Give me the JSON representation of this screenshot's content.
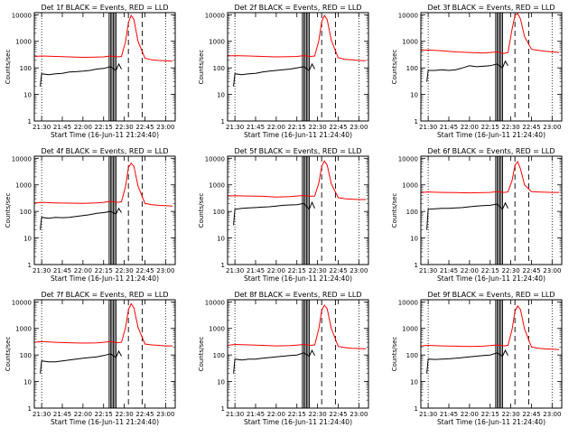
{
  "chart_data": [
    {
      "type": "line",
      "title": "Det 1f BLACK = Events, RED = LLD",
      "xlabel": "Start Time (16-Jun-11 21:24:40)",
      "ylabel": "Counts/sec",
      "x_tick_labels": [
        "21:30",
        "21:45",
        "22:00",
        "22:15",
        "22:30",
        "22:45",
        "23:00"
      ],
      "y_tick_labels": [
        "1",
        "10",
        "100",
        "1000",
        "10000"
      ],
      "yscale": "log",
      "xlim": [
        "21:24:40",
        "23:07"
      ],
      "ylim": [
        1,
        12000
      ],
      "series": [
        {
          "color": "#000000",
          "x": [
            "21:29",
            "21:30",
            "21:35",
            "21:40",
            "21:45",
            "21:50",
            "21:55",
            "22:00",
            "22:05",
            "22:10",
            "22:15",
            "22:20",
            "22:24",
            "22:26",
            "22:28"
          ],
          "y": [
            20,
            60,
            55,
            60,
            62,
            70,
            72,
            75,
            80,
            90,
            95,
            110,
            80,
            140,
            90
          ]
        },
        {
          "color": "#ff0000",
          "x": [
            "21:25",
            "21:30",
            "21:40",
            "21:50",
            "22:00",
            "22:10",
            "22:15",
            "22:20",
            "22:25",
            "22:28",
            "22:31",
            "22:33",
            "22:35",
            "22:37",
            "22:40",
            "22:45",
            "22:50",
            "22:55",
            "23:00",
            "23:05"
          ],
          "y": [
            270,
            280,
            270,
            260,
            250,
            255,
            260,
            280,
            260,
            270,
            1000,
            5000,
            9500,
            6500,
            1000,
            230,
            200,
            190,
            185,
            180
          ]
        }
      ]
    },
    {
      "type": "line",
      "title": "Det 2f BLACK = Events, RED = LLD",
      "xlabel": "Start Time (16-Jun-11 21:24:40)",
      "ylabel": "Counts/sec",
      "x_tick_labels": [
        "21:30",
        "21:45",
        "22:00",
        "22:15",
        "22:30",
        "22:45",
        "23:00"
      ],
      "y_tick_labels": [
        "1",
        "10",
        "100",
        "1000",
        "10000"
      ],
      "yscale": "log",
      "xlim": [
        "21:24:40",
        "23:07"
      ],
      "ylim": [
        1,
        12000
      ],
      "series": [
        {
          "color": "#000000",
          "x": [
            "21:29",
            "21:30",
            "21:35",
            "21:40",
            "21:45",
            "21:50",
            "21:55",
            "22:00",
            "22:05",
            "22:10",
            "22:15",
            "22:20",
            "22:24",
            "22:26",
            "22:28"
          ],
          "y": [
            20,
            60,
            55,
            60,
            62,
            70,
            75,
            80,
            85,
            90,
            100,
            110,
            80,
            140,
            90
          ]
        },
        {
          "color": "#ff0000",
          "x": [
            "21:25",
            "21:30",
            "21:40",
            "21:50",
            "22:00",
            "22:10",
            "22:15",
            "22:20",
            "22:25",
            "22:28",
            "22:31",
            "22:33",
            "22:35",
            "22:37",
            "22:40",
            "22:45",
            "22:50",
            "22:55",
            "23:00",
            "23:05"
          ],
          "y": [
            280,
            290,
            280,
            270,
            260,
            265,
            270,
            290,
            270,
            280,
            1100,
            5500,
            9500,
            6500,
            1100,
            240,
            210,
            200,
            190,
            185
          ]
        }
      ]
    },
    {
      "type": "line",
      "title": "Det 3f BLACK = Events, RED = LLD",
      "xlabel": "Start Time (16-Jun-11 21:24:40)",
      "ylabel": "Counts/sec",
      "x_tick_labels": [
        "21:30",
        "21:45",
        "22:00",
        "22:15",
        "22:30",
        "22:45",
        "23:00"
      ],
      "y_tick_labels": [
        "1",
        "10",
        "100",
        "1000",
        "10000"
      ],
      "yscale": "log",
      "xlim": [
        "21:24:40",
        "23:07"
      ],
      "ylim": [
        1,
        12000
      ],
      "series": [
        {
          "color": "#000000",
          "x": [
            "21:29",
            "21:30",
            "21:35",
            "21:40",
            "21:45",
            "21:50",
            "21:55",
            "22:00",
            "22:05",
            "22:10",
            "22:15",
            "22:20",
            "22:24",
            "22:26",
            "22:28"
          ],
          "y": [
            30,
            80,
            80,
            85,
            80,
            85,
            100,
            120,
            110,
            115,
            120,
            140,
            100,
            180,
            120
          ]
        },
        {
          "color": "#ff0000",
          "x": [
            "21:25",
            "21:30",
            "21:40",
            "21:50",
            "22:00",
            "22:10",
            "22:15",
            "22:20",
            "22:25",
            "22:28",
            "22:31",
            "22:33",
            "22:35",
            "22:37",
            "22:40",
            "22:45",
            "22:50",
            "22:55",
            "23:00",
            "23:05"
          ],
          "y": [
            450,
            470,
            440,
            400,
            380,
            360,
            380,
            400,
            350,
            380,
            3000,
            9500,
            11000,
            7000,
            1500,
            500,
            460,
            420,
            400,
            380
          ]
        }
      ]
    },
    {
      "type": "line",
      "title": "Det 4f BLACK = Events, RED = LLD",
      "xlabel": "Start Time (16-Jun-11 21:24:40)",
      "ylabel": "Counts/sec",
      "x_tick_labels": [
        "21:30",
        "21:45",
        "22:00",
        "22:15",
        "22:30",
        "22:45",
        "23:00"
      ],
      "y_tick_labels": [
        "1",
        "10",
        "100",
        "1000",
        "10000"
      ],
      "yscale": "log",
      "xlim": [
        "21:24:40",
        "23:07"
      ],
      "ylim": [
        1,
        12000
      ],
      "series": [
        {
          "color": "#000000",
          "x": [
            "21:29",
            "21:30",
            "21:35",
            "21:40",
            "21:45",
            "21:50",
            "21:55",
            "22:00",
            "22:05",
            "22:10",
            "22:15",
            "22:20",
            "22:24",
            "22:26",
            "22:28"
          ],
          "y": [
            20,
            60,
            55,
            60,
            58,
            60,
            65,
            70,
            75,
            85,
            90,
            100,
            80,
            130,
            90
          ]
        },
        {
          "color": "#ff0000",
          "x": [
            "21:25",
            "21:30",
            "21:40",
            "21:50",
            "22:00",
            "22:10",
            "22:15",
            "22:20",
            "22:25",
            "22:28",
            "22:31",
            "22:33",
            "22:35",
            "22:37",
            "22:40",
            "22:45",
            "22:50",
            "22:55",
            "23:00",
            "23:05"
          ],
          "y": [
            210,
            220,
            210,
            205,
            200,
            210,
            220,
            240,
            220,
            230,
            900,
            4500,
            6500,
            5000,
            900,
            200,
            180,
            170,
            165,
            160
          ]
        }
      ]
    },
    {
      "type": "line",
      "title": "Det 5f BLACK = Events, RED = LLD",
      "xlabel": "Start Time (16-Jun-11 21:24:40)",
      "ylabel": "Counts/sec",
      "x_tick_labels": [
        "21:30",
        "21:45",
        "22:00",
        "22:15",
        "22:30",
        "22:45",
        "23:00"
      ],
      "y_tick_labels": [
        "1",
        "10",
        "100",
        "1000",
        "10000"
      ],
      "yscale": "log",
      "xlim": [
        "21:24:40",
        "23:07"
      ],
      "ylim": [
        1,
        12000
      ],
      "series": [
        {
          "color": "#000000",
          "x": [
            "21:29",
            "21:30",
            "21:35",
            "21:40",
            "21:45",
            "21:50",
            "21:55",
            "22:00",
            "22:05",
            "22:10",
            "22:15",
            "22:20",
            "22:24",
            "22:26",
            "22:28"
          ],
          "y": [
            30,
            120,
            130,
            135,
            140,
            145,
            150,
            160,
            170,
            175,
            180,
            200,
            120,
            220,
            130
          ]
        },
        {
          "color": "#ff0000",
          "x": [
            "21:25",
            "21:30",
            "21:40",
            "21:50",
            "22:00",
            "22:10",
            "22:15",
            "22:20",
            "22:25",
            "22:28",
            "22:31",
            "22:33",
            "22:35",
            "22:37",
            "22:40",
            "22:45",
            "22:50",
            "22:55",
            "23:00",
            "23:05"
          ],
          "y": [
            380,
            390,
            380,
            370,
            350,
            360,
            380,
            400,
            370,
            380,
            1200,
            5000,
            8000,
            5500,
            1100,
            330,
            300,
            290,
            280,
            280
          ]
        }
      ]
    },
    {
      "type": "line",
      "title": "Det 6f BLACK = Events, RED = LLD",
      "xlabel": "Start Time (16-Jun-11 21:24:40)",
      "ylabel": "Counts/sec",
      "x_tick_labels": [
        "21:30",
        "21:45",
        "22:00",
        "22:15",
        "22:30",
        "22:45",
        "23:00"
      ],
      "y_tick_labels": [
        "1",
        "10",
        "100",
        "1000",
        "10000"
      ],
      "yscale": "log",
      "xlim": [
        "21:24:40",
        "23:07"
      ],
      "ylim": [
        1,
        12000
      ],
      "series": [
        {
          "color": "#000000",
          "x": [
            "21:29",
            "21:30",
            "21:35",
            "21:40",
            "21:45",
            "21:50",
            "21:55",
            "22:00",
            "22:05",
            "22:10",
            "22:15",
            "22:20",
            "22:24",
            "22:26",
            "22:28"
          ],
          "y": [
            20,
            120,
            125,
            130,
            130,
            135,
            140,
            150,
            160,
            165,
            170,
            190,
            120,
            210,
            130
          ]
        },
        {
          "color": "#ff0000",
          "x": [
            "21:25",
            "21:30",
            "21:40",
            "21:50",
            "22:00",
            "22:10",
            "22:15",
            "22:20",
            "22:25",
            "22:28",
            "22:31",
            "22:33",
            "22:35",
            "22:37",
            "22:40",
            "22:45",
            "22:50",
            "22:55",
            "23:00",
            "23:05"
          ],
          "y": [
            520,
            540,
            520,
            510,
            500,
            510,
            520,
            560,
            520,
            540,
            1500,
            5500,
            7500,
            4000,
            1000,
            560,
            540,
            530,
            520,
            520
          ]
        }
      ]
    },
    {
      "type": "line",
      "title": "Det 7f BLACK = Events, RED = LLD",
      "xlabel": "Start Time (16-Jun-11 21:24:40)",
      "ylabel": "Counts/sec",
      "x_tick_labels": [
        "21:30",
        "21:45",
        "22:00",
        "22:15",
        "22:30",
        "22:45",
        "23:00"
      ],
      "y_tick_labels": [
        "1",
        "10",
        "100",
        "1000",
        "10000"
      ],
      "yscale": "log",
      "xlim": [
        "21:24:40",
        "23:07"
      ],
      "ylim": [
        1,
        12000
      ],
      "series": [
        {
          "color": "#000000",
          "x": [
            "21:29",
            "21:30",
            "21:35",
            "21:40",
            "21:45",
            "21:50",
            "21:55",
            "22:00",
            "22:05",
            "22:10",
            "22:15",
            "22:20",
            "22:24",
            "22:26",
            "22:28"
          ],
          "y": [
            20,
            60,
            55,
            55,
            60,
            65,
            70,
            75,
            80,
            85,
            95,
            110,
            80,
            140,
            90
          ]
        },
        {
          "color": "#ff0000",
          "x": [
            "21:25",
            "21:30",
            "21:40",
            "21:50",
            "22:00",
            "22:10",
            "22:15",
            "22:20",
            "22:25",
            "22:28",
            "22:31",
            "22:33",
            "22:35",
            "22:37",
            "22:40",
            "22:45",
            "22:50",
            "22:55",
            "23:00",
            "23:05"
          ],
          "y": [
            300,
            320,
            300,
            290,
            280,
            285,
            300,
            320,
            290,
            300,
            1100,
            5000,
            8500,
            6000,
            1100,
            260,
            240,
            230,
            220,
            220
          ]
        }
      ]
    },
    {
      "type": "line",
      "title": "Det 8f BLACK = Events, RED = LLD",
      "xlabel": "Start Time (16-Jun-11 21:24:40)",
      "ylabel": "Counts/sec",
      "x_tick_labels": [
        "21:30",
        "21:45",
        "22:00",
        "22:15",
        "22:30",
        "22:45",
        "23:00"
      ],
      "y_tick_labels": [
        "1",
        "10",
        "100",
        "1000",
        "10000"
      ],
      "yscale": "log",
      "xlim": [
        "21:24:40",
        "23:07"
      ],
      "ylim": [
        1,
        12000
      ],
      "series": [
        {
          "color": "#000000",
          "x": [
            "21:29",
            "21:30",
            "21:35",
            "21:40",
            "21:45",
            "21:50",
            "21:55",
            "22:00",
            "22:05",
            "22:10",
            "22:15",
            "22:20",
            "22:24",
            "22:26",
            "22:28"
          ],
          "y": [
            20,
            70,
            65,
            70,
            70,
            75,
            80,
            85,
            90,
            95,
            100,
            120,
            90,
            150,
            95
          ]
        },
        {
          "color": "#ff0000",
          "x": [
            "21:25",
            "21:30",
            "21:40",
            "21:50",
            "22:00",
            "22:10",
            "22:15",
            "22:20",
            "22:25",
            "22:28",
            "22:31",
            "22:33",
            "22:35",
            "22:37",
            "22:40",
            "22:45",
            "22:50",
            "22:55",
            "23:00",
            "23:05"
          ],
          "y": [
            230,
            250,
            240,
            230,
            220,
            225,
            235,
            250,
            230,
            240,
            1000,
            4800,
            7500,
            5500,
            1000,
            210,
            190,
            180,
            175,
            170
          ]
        }
      ]
    },
    {
      "type": "line",
      "title": "Det 9f BLACK = Events, RED = LLD",
      "xlabel": "Start Time (16-Jun-11 21:24:40)",
      "ylabel": "Counts/sec",
      "x_tick_labels": [
        "21:30",
        "21:45",
        "22:00",
        "22:15",
        "22:30",
        "22:45",
        "23:00"
      ],
      "y_tick_labels": [
        "1",
        "10",
        "100",
        "1000",
        "10000"
      ],
      "yscale": "log",
      "xlim": [
        "21:24:40",
        "23:07"
      ],
      "ylim": [
        1,
        12000
      ],
      "series": [
        {
          "color": "#000000",
          "x": [
            "21:29",
            "21:30",
            "21:35",
            "21:40",
            "21:45",
            "21:50",
            "21:55",
            "22:00",
            "22:05",
            "22:10",
            "22:15",
            "22:20",
            "22:24",
            "22:26",
            "22:28"
          ],
          "y": [
            20,
            70,
            68,
            70,
            72,
            75,
            80,
            85,
            90,
            95,
            100,
            120,
            90,
            150,
            95
          ]
        },
        {
          "color": "#ff0000",
          "x": [
            "21:25",
            "21:30",
            "21:40",
            "21:50",
            "22:00",
            "22:10",
            "22:15",
            "22:20",
            "22:25",
            "22:28",
            "22:31",
            "22:33",
            "22:35",
            "22:37",
            "22:40",
            "22:45",
            "22:50",
            "22:55",
            "23:00",
            "23:05"
          ],
          "y": [
            220,
            230,
            220,
            215,
            210,
            215,
            225,
            240,
            220,
            230,
            950,
            4500,
            7000,
            5200,
            950,
            200,
            180,
            170,
            165,
            160
          ]
        }
      ]
    }
  ],
  "solid_markers": [
    "22:19",
    "22:20",
    "22:21",
    "22:22",
    "22:23",
    "22:24"
  ],
  "dashed_markers": [
    "22:33",
    "22:43"
  ],
  "dotted_markers": [
    "21:30",
    "23:00"
  ]
}
